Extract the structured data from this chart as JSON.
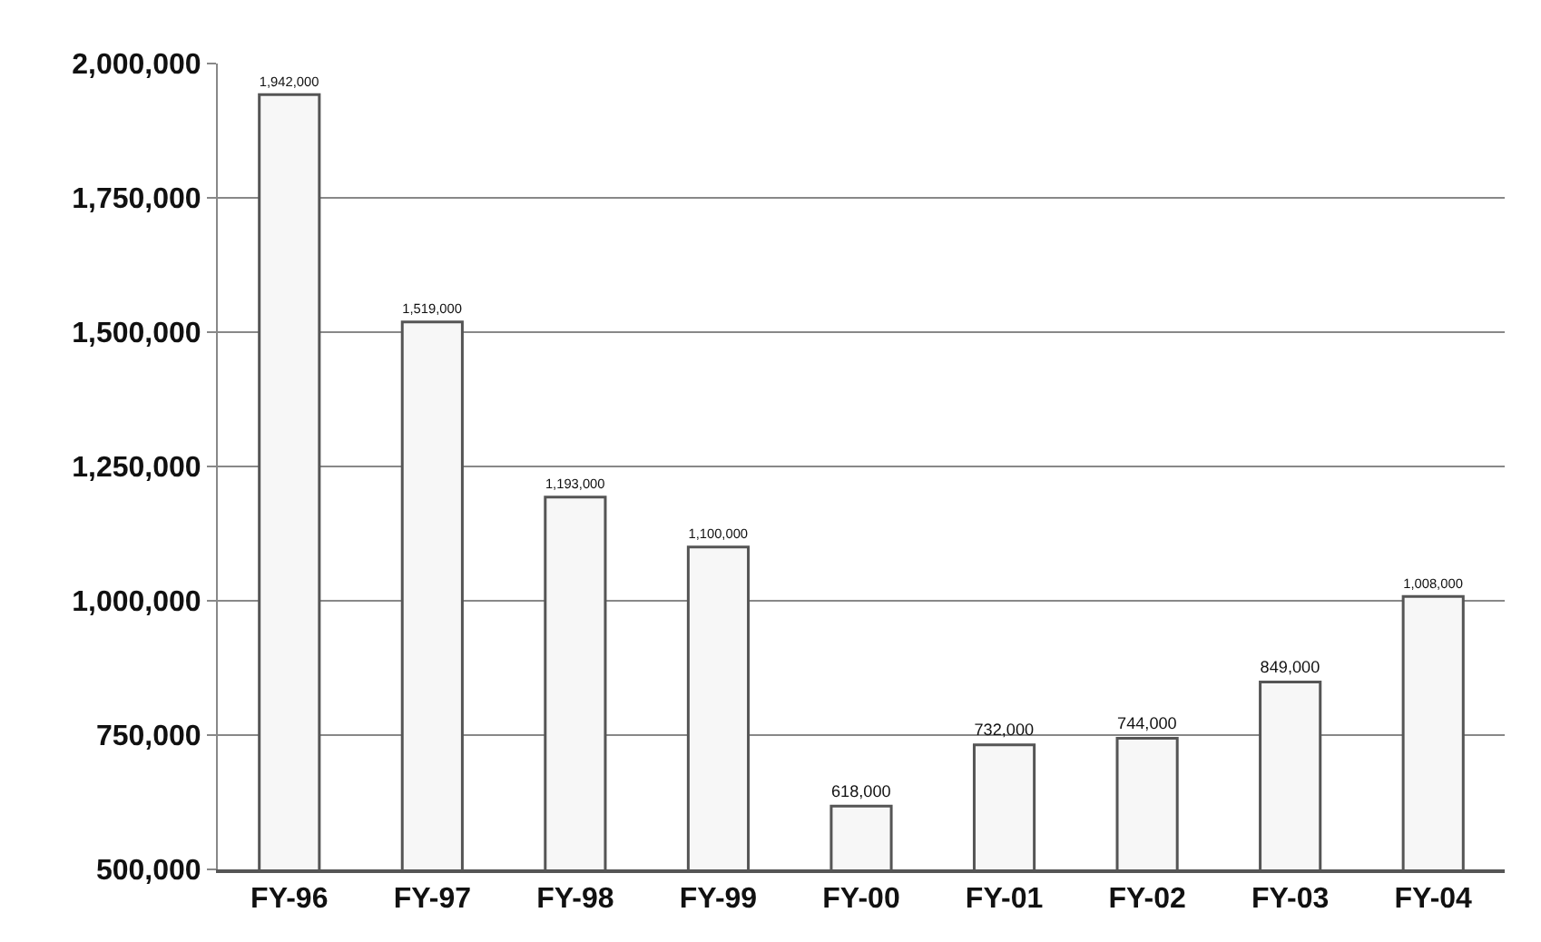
{
  "chart_data": {
    "type": "bar",
    "categories": [
      "FY-96",
      "FY-97",
      "FY-98",
      "FY-99",
      "FY-00",
      "FY-01",
      "FY-02",
      "FY-03",
      "FY-04"
    ],
    "values": [
      1942000,
      1519000,
      1193000,
      1100000,
      618000,
      732000,
      744000,
      849000,
      1008000
    ],
    "value_labels": [
      "1,942,000",
      "1,519,000",
      "1,193,000",
      "1,100,000",
      "618,000",
      "732,000",
      "744,000",
      "849,000",
      "1,008,000"
    ],
    "color": "#f7f7f7",
    "ylim": [
      500000,
      2000000
    ],
    "yticks": [
      {
        "value": 500000,
        "label": "500,000"
      },
      {
        "value": 750000,
        "label": "750,000"
      },
      {
        "value": 1000000,
        "label": "1,000,000"
      },
      {
        "value": 1250000,
        "label": "1,250,000"
      },
      {
        "value": 1500000,
        "label": "1,500,000"
      },
      {
        "value": 1750000,
        "label": "1,750,000"
      },
      {
        "value": 2000000,
        "label": "2,000,000"
      }
    ],
    "grid": "y"
  }
}
